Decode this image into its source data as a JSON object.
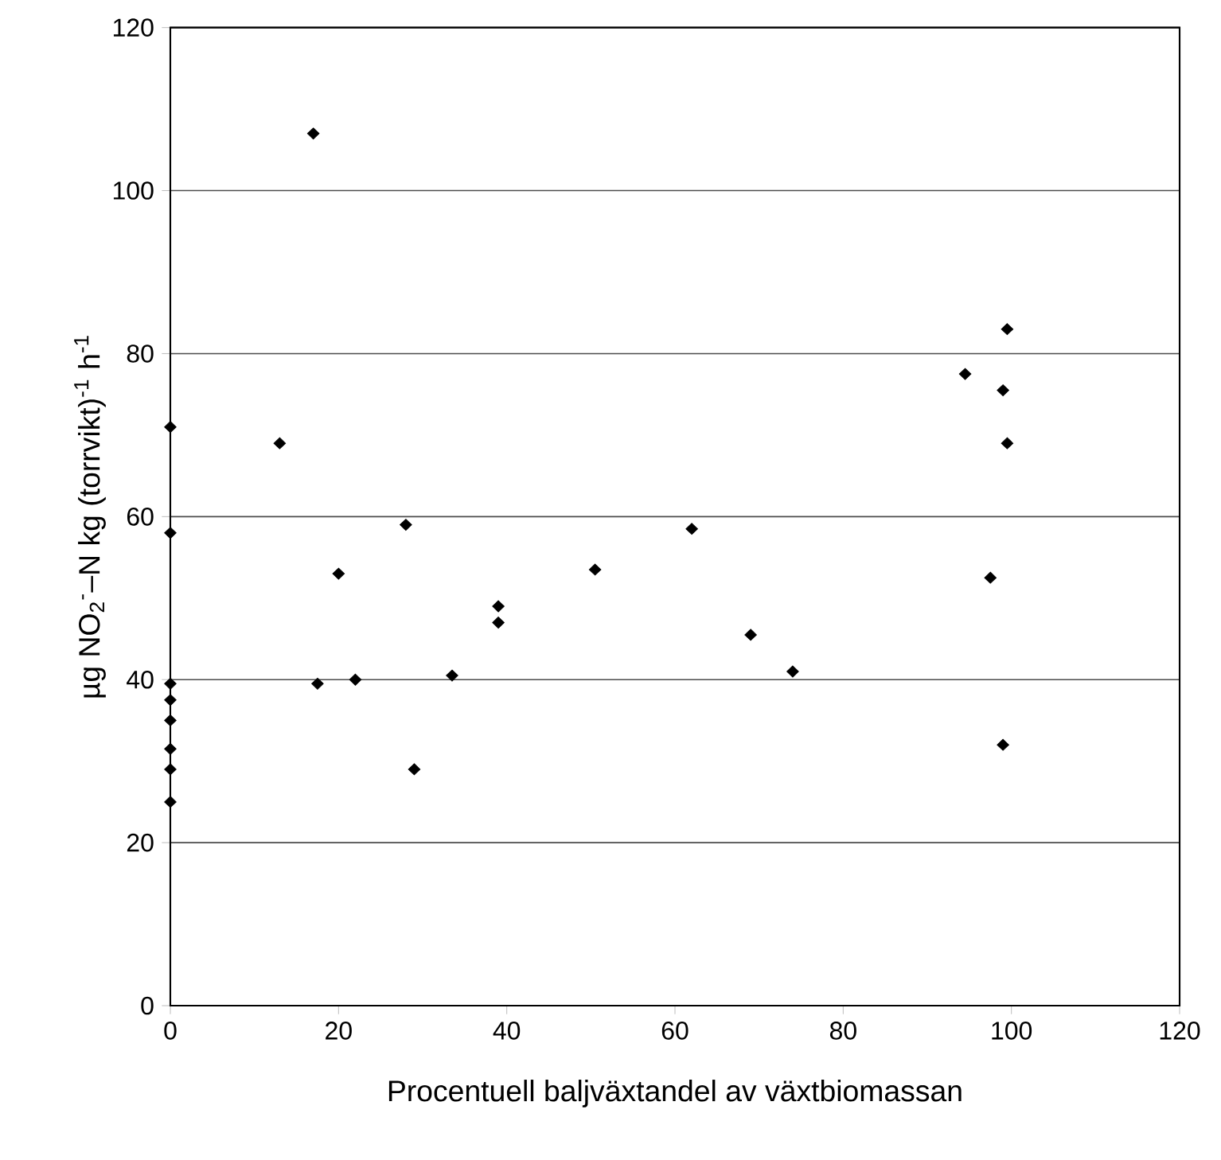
{
  "chart_data": {
    "type": "scatter",
    "xlabel": "Procentuell baljväxtandel av växtbiomassan",
    "ylabel": "µg NO$_{2}$$^{-}$–N kg (torrvikt)$^{-1}$ h$^{-1}$",
    "series": [
      {
        "color": "#000000",
        "x": [
          0,
          0,
          0,
          0,
          0,
          0,
          0,
          0,
          17,
          13,
          17.5,
          20,
          22,
          28,
          29,
          33.5,
          39,
          39,
          50.5,
          62,
          69,
          74,
          94.5,
          99.5,
          99,
          99.5,
          97.5,
          99
        ],
        "values": [
          71,
          58,
          39.5,
          37.5,
          35,
          31.5,
          29,
          25,
          107,
          69,
          39.5,
          53,
          40,
          59,
          29,
          40.5,
          49,
          47,
          53.5,
          58.5,
          45.5,
          41,
          77.5,
          83,
          75.5,
          69,
          52.5,
          32
        ]
      }
    ],
    "marker": "diamond",
    "grid": "y",
    "xlim": [
      0,
      120
    ],
    "ylim": [
      0,
      120
    ],
    "xticks": [
      0,
      20,
      40,
      60,
      80,
      100,
      120
    ],
    "yticks": [
      0,
      20,
      40,
      60,
      80,
      100,
      120
    ]
  }
}
